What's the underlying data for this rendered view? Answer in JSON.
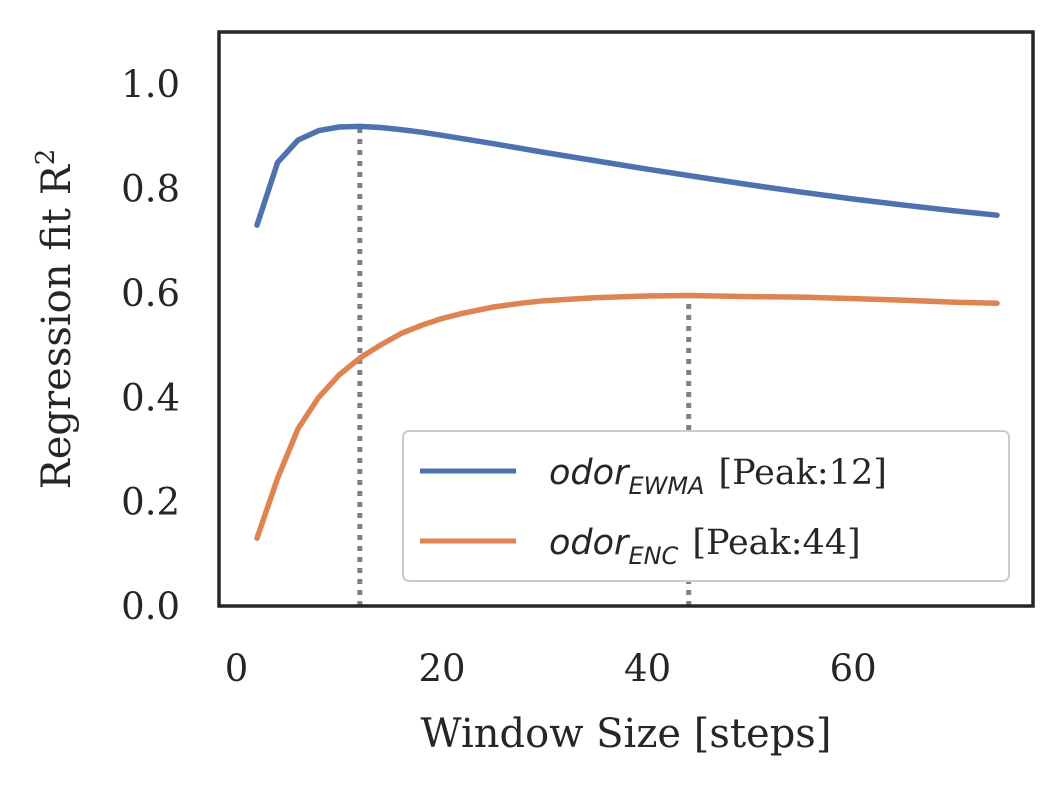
{
  "chart_data": {
    "type": "line",
    "title": "",
    "xlabel": "Window Size [steps]",
    "ylabel": "Regression fit R",
    "ylabel_superscript": "2",
    "xlim": [
      -1.7,
      77.5
    ],
    "ylim": [
      0.0,
      1.1
    ],
    "xticks": [
      0,
      20,
      40,
      60
    ],
    "yticks": [
      0.0,
      0.2,
      0.4,
      0.6,
      0.8,
      1.0
    ],
    "xtick_labels": [
      "0",
      "20",
      "40",
      "60"
    ],
    "ytick_labels": [
      "0.0",
      "0.2",
      "0.4",
      "0.6",
      "0.8",
      "1.0"
    ],
    "grid": false,
    "legend_position": "bottom-right",
    "series": [
      {
        "name": "odor_EWMA [Peak:12]",
        "label_main": "odor",
        "label_sub": "EWMA",
        "label_suffix": "[Peak:12]",
        "color": "#4c72b0",
        "peak_x": 12,
        "x": [
          2,
          4,
          6,
          8,
          10,
          12,
          14,
          16,
          18,
          20,
          25,
          30,
          35,
          40,
          45,
          50,
          55,
          60,
          65,
          70,
          74
        ],
        "y": [
          0.73,
          0.85,
          0.893,
          0.911,
          0.918,
          0.919,
          0.917,
          0.913,
          0.908,
          0.902,
          0.886,
          0.869,
          0.853,
          0.837,
          0.822,
          0.807,
          0.793,
          0.78,
          0.768,
          0.757,
          0.749
        ]
      },
      {
        "name": "odor_ENC [Peak:44]",
        "label_main": "odor",
        "label_sub": "ENC",
        "label_suffix": "[Peak:44]",
        "color": "#dd8452",
        "peak_x": 44,
        "x": [
          2,
          4,
          6,
          8,
          10,
          12,
          14,
          16,
          18,
          20,
          22,
          25,
          28,
          30,
          35,
          40,
          44,
          50,
          55,
          60,
          65,
          70,
          74
        ],
        "y": [
          0.13,
          0.245,
          0.34,
          0.4,
          0.443,
          0.475,
          0.5,
          0.522,
          0.538,
          0.551,
          0.561,
          0.573,
          0.581,
          0.585,
          0.591,
          0.594,
          0.595,
          0.593,
          0.592,
          0.589,
          0.586,
          0.582,
          0.58
        ]
      }
    ],
    "vlines": [
      {
        "x": 12,
        "y_top": 0.919,
        "color": "#808080",
        "style": "dotted"
      },
      {
        "x": 44,
        "y_top": 0.595,
        "color": "#808080",
        "style": "dotted"
      }
    ]
  }
}
